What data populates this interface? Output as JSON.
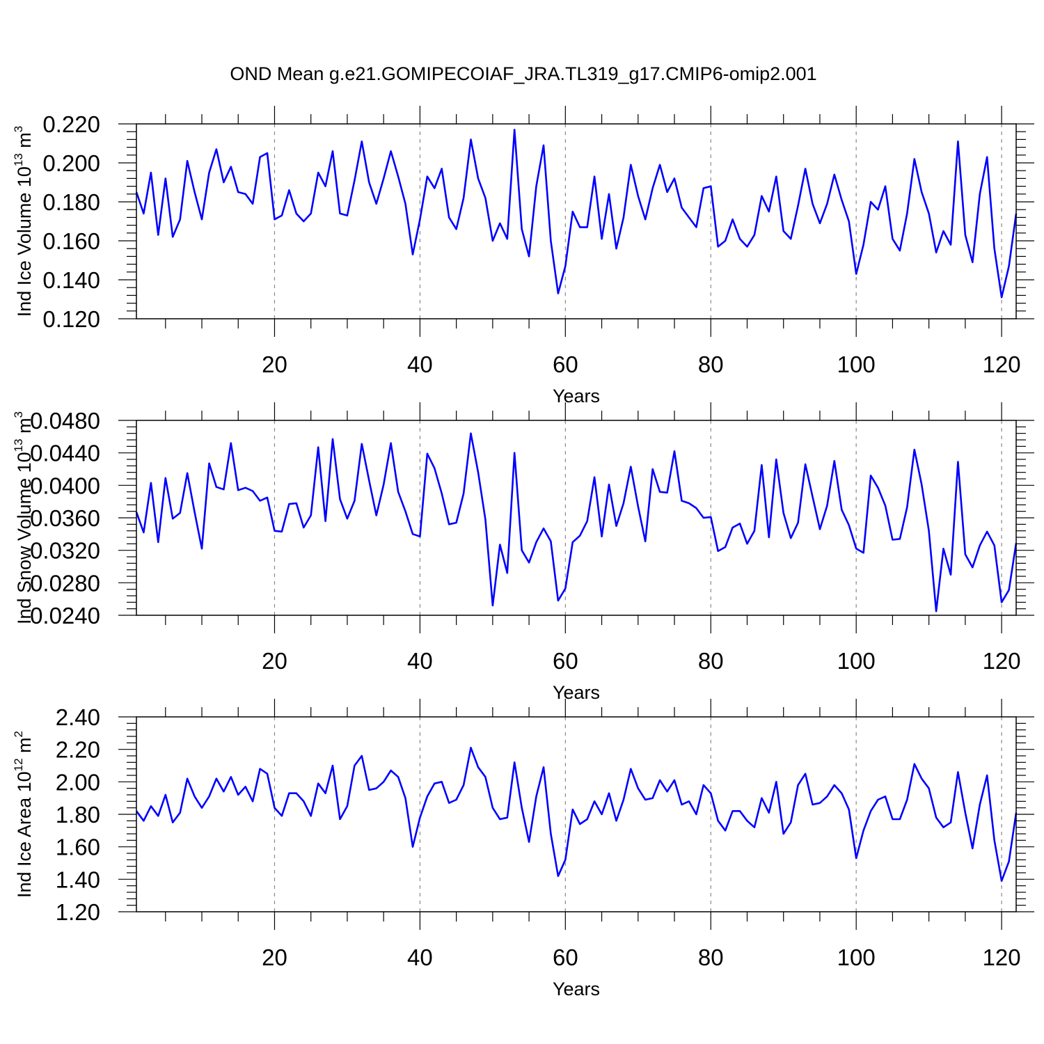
{
  "title": "OND Mean g.e21.GOMIPECOIAF_JRA.TL319_g17.CMIP6-omip2.001",
  "line_color": "#0000ff",
  "chart_data": [
    {
      "type": "line",
      "title": "OND Mean g.e21.GOMIPECOIAF_JRA.TL319_g17.CMIP6-omip2.001",
      "xlabel": "Years",
      "ylabel": {
        "text": "Ind Ice Volume 10",
        "exp": "13",
        "unit": " m",
        "unit_exp": "3"
      },
      "xlim": [
        1,
        122
      ],
      "ylim": [
        0.12,
        0.22
      ],
      "xticks": [
        20,
        40,
        60,
        80,
        100,
        120
      ],
      "yticks": [
        "0.120",
        "0.140",
        "0.160",
        "0.180",
        "0.200",
        "0.220"
      ],
      "ytick_values": [
        0.12,
        0.14,
        0.16,
        0.18,
        0.2,
        0.22
      ],
      "grid": "dashed vertical at x ticks",
      "x_start": 1,
      "values": [
        0.185,
        0.174,
        0.195,
        0.163,
        0.192,
        0.162,
        0.171,
        0.201,
        0.185,
        0.171,
        0.195,
        0.207,
        0.19,
        0.198,
        0.185,
        0.184,
        0.179,
        0.203,
        0.205,
        0.171,
        0.173,
        0.186,
        0.174,
        0.17,
        0.174,
        0.195,
        0.188,
        0.206,
        0.174,
        0.173,
        0.191,
        0.211,
        0.19,
        0.179,
        0.192,
        0.206,
        0.193,
        0.179,
        0.153,
        0.171,
        0.193,
        0.187,
        0.197,
        0.172,
        0.166,
        0.182,
        0.212,
        0.192,
        0.182,
        0.16,
        0.169,
        0.161,
        0.217,
        0.166,
        0.152,
        0.188,
        0.209,
        0.16,
        0.133,
        0.147,
        0.175,
        0.167,
        0.167,
        0.193,
        0.161,
        0.184,
        0.156,
        0.172,
        0.199,
        0.183,
        0.171,
        0.187,
        0.199,
        0.185,
        0.192,
        0.177,
        0.172,
        0.167,
        0.187,
        0.188,
        0.157,
        0.16,
        0.171,
        0.161,
        0.157,
        0.163,
        0.183,
        0.175,
        0.193,
        0.165,
        0.161,
        0.178,
        0.197,
        0.179,
        0.169,
        0.179,
        0.194,
        0.181,
        0.17,
        0.143,
        0.158,
        0.18,
        0.176,
        0.188,
        0.161,
        0.155,
        0.174,
        0.202,
        0.185,
        0.174,
        0.154,
        0.165,
        0.158,
        0.211,
        0.163,
        0.149,
        0.184,
        0.203,
        0.156,
        0.131,
        0.147,
        0.174
      ]
    },
    {
      "type": "line",
      "xlabel": "Years",
      "ylabel": {
        "text": "Ind Snow Volume 10",
        "exp": "13",
        "unit": " m",
        "unit_exp": "3"
      },
      "xlim": [
        1,
        122
      ],
      "ylim": [
        0.024,
        0.048
      ],
      "xticks": [
        20,
        40,
        60,
        80,
        100,
        120
      ],
      "yticks": [
        "0.0240",
        "0.0280",
        "0.0320",
        "0.0360",
        "0.0400",
        "0.0440",
        "0.0480"
      ],
      "ytick_values": [
        0.024,
        0.028,
        0.032,
        0.036,
        0.04,
        0.044,
        0.048
      ],
      "grid": "dashed vertical at x ticks",
      "x_start": 1,
      "values": [
        0.0367,
        0.0342,
        0.0403,
        0.033,
        0.0409,
        0.0359,
        0.0366,
        0.0415,
        0.0367,
        0.0322,
        0.0427,
        0.0398,
        0.0395,
        0.0452,
        0.0394,
        0.0397,
        0.0393,
        0.0381,
        0.0385,
        0.0344,
        0.0343,
        0.0377,
        0.0378,
        0.0348,
        0.0363,
        0.0447,
        0.0356,
        0.0457,
        0.0383,
        0.0359,
        0.0381,
        0.0451,
        0.0406,
        0.0363,
        0.0401,
        0.0452,
        0.0392,
        0.0368,
        0.034,
        0.0337,
        0.0439,
        0.0421,
        0.039,
        0.0352,
        0.0354,
        0.039,
        0.0464,
        0.0416,
        0.0358,
        0.0252,
        0.0327,
        0.0292,
        0.044,
        0.032,
        0.0305,
        0.033,
        0.0347,
        0.0331,
        0.0258,
        0.0273,
        0.033,
        0.0338,
        0.0356,
        0.041,
        0.0337,
        0.0401,
        0.035,
        0.0378,
        0.0423,
        0.0374,
        0.0331,
        0.042,
        0.0392,
        0.0391,
        0.0442,
        0.0381,
        0.0378,
        0.0372,
        0.036,
        0.0361,
        0.0319,
        0.0324,
        0.0348,
        0.0353,
        0.0328,
        0.0344,
        0.0425,
        0.0336,
        0.0432,
        0.0366,
        0.0335,
        0.0354,
        0.0426,
        0.0386,
        0.0346,
        0.0375,
        0.043,
        0.037,
        0.0351,
        0.0322,
        0.0317,
        0.0412,
        0.0397,
        0.0375,
        0.0333,
        0.0334,
        0.0373,
        0.0444,
        0.0401,
        0.0344,
        0.0245,
        0.0322,
        0.029,
        0.0429,
        0.0315,
        0.0299,
        0.0326,
        0.0343,
        0.0326,
        0.0256,
        0.0271,
        0.0329
      ]
    },
    {
      "type": "line",
      "xlabel": "Years",
      "ylabel": {
        "text": "Ind Ice Area 10",
        "exp": "12",
        "unit": " m",
        "unit_exp": "2"
      },
      "xlim": [
        1,
        122
      ],
      "ylim": [
        1.2,
        2.4
      ],
      "xticks": [
        20,
        40,
        60,
        80,
        100,
        120
      ],
      "yticks": [
        "1.20",
        "1.40",
        "1.60",
        "1.80",
        "2.00",
        "2.20",
        "2.40"
      ],
      "ytick_values": [
        1.2,
        1.4,
        1.6,
        1.8,
        2.0,
        2.2,
        2.4
      ],
      "grid": "dashed vertical at x ticks",
      "x_start": 1,
      "values": [
        1.82,
        1.76,
        1.85,
        1.79,
        1.92,
        1.75,
        1.81,
        2.02,
        1.91,
        1.84,
        1.91,
        2.02,
        1.94,
        2.03,
        1.92,
        1.97,
        1.88,
        2.08,
        2.05,
        1.84,
        1.79,
        1.93,
        1.93,
        1.88,
        1.79,
        1.99,
        1.93,
        2.1,
        1.77,
        1.85,
        2.1,
        2.16,
        1.95,
        1.96,
        2.0,
        2.07,
        2.03,
        1.9,
        1.6,
        1.78,
        1.91,
        1.99,
        2.0,
        1.87,
        1.89,
        1.98,
        2.21,
        2.09,
        2.03,
        1.84,
        1.77,
        1.78,
        2.12,
        1.84,
        1.63,
        1.91,
        2.09,
        1.68,
        1.42,
        1.52,
        1.83,
        1.74,
        1.77,
        1.88,
        1.8,
        1.93,
        1.76,
        1.89,
        2.08,
        1.96,
        1.89,
        1.9,
        2.01,
        1.94,
        2.01,
        1.86,
        1.88,
        1.8,
        1.98,
        1.93,
        1.76,
        1.7,
        1.82,
        1.82,
        1.76,
        1.72,
        1.9,
        1.81,
        2.0,
        1.68,
        1.75,
        1.98,
        2.05,
        1.86,
        1.87,
        1.91,
        1.98,
        1.93,
        1.83,
        1.53,
        1.7,
        1.82,
        1.89,
        1.91,
        1.77,
        1.77,
        1.89,
        2.11,
        2.02,
        1.96,
        1.78,
        1.72,
        1.75,
        2.06,
        1.81,
        1.59,
        1.86,
        2.04,
        1.64,
        1.39,
        1.51,
        1.81
      ]
    }
  ]
}
